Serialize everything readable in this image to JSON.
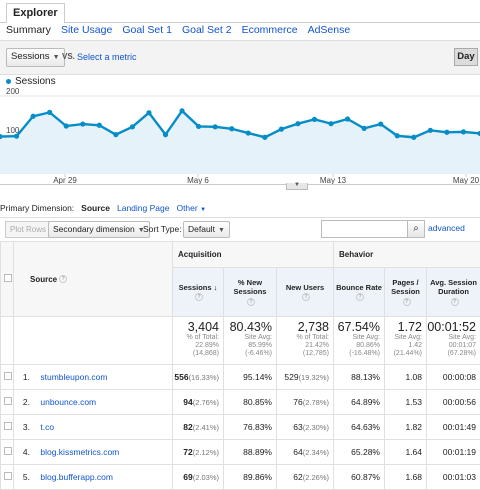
{
  "tabs": {
    "explorer": "Explorer"
  },
  "subnav": [
    "Summary",
    "Site Usage",
    "Goal Set 1",
    "Goal Set 2",
    "Ecommerce",
    "AdSense"
  ],
  "controls": {
    "metric": "Sessions",
    "vs": "VS.",
    "select_metric": "Select a metric",
    "day": "Day"
  },
  "legend": "Sessions",
  "colors": {
    "series": "#058dc7",
    "link": "#1155cc"
  },
  "chart_data": {
    "type": "area",
    "y_ticks": [
      "200",
      "100"
    ],
    "ylim": [
      0,
      200
    ],
    "x_labels": [
      "Apr 29",
      "May 6",
      "May 13",
      "May 20"
    ],
    "grid": true,
    "series": [
      {
        "name": "Sessions",
        "values": [
          96,
          97,
          148,
          158,
          123,
          128,
          125,
          101,
          121,
          157,
          101,
          162,
          122,
          121,
          116,
          105,
          94,
          115,
          129,
          140,
          129,
          141,
          117,
          128,
          98,
          94,
          112,
          107,
          108,
          104
        ]
      }
    ]
  },
  "primary_dimension": {
    "label": "Primary Dimension:",
    "options": [
      "Source",
      "Landing Page",
      "Other"
    ]
  },
  "toolbar": {
    "plot_rows": "Plot Rows",
    "secondary": "Secondary dimension",
    "sort_type": "Sort Type:",
    "default": "Default",
    "advanced": "advanced"
  },
  "table": {
    "group_acq": "Acquisition",
    "group_beh": "Behavior",
    "col_source": "Source",
    "cols": [
      "Sessions",
      "% New Sessions",
      "New Users",
      "Bounce Rate",
      "Pages / Session",
      "Avg. Session Duration"
    ],
    "totals": [
      {
        "big": "3,404",
        "l1": "% of Total:",
        "l2": "22.89%",
        "l3": "(14,868)"
      },
      {
        "big": "80.43%",
        "l1": "Site Avg:",
        "l2": "85.99%",
        "l3": "(-6.46%)"
      },
      {
        "big": "2,738",
        "l1": "% of Total:",
        "l2": "21.42%",
        "l3": "(12,785)"
      },
      {
        "big": "67.54%",
        "l1": "Site Avg:",
        "l2": "80.86%",
        "l3": "(-16.48%)"
      },
      {
        "big": "1.72",
        "l1": "Site Avg:",
        "l2": "1.42",
        "l3": "(21.44%)"
      },
      {
        "big": "00:01:52",
        "l1": "Site Avg:",
        "l2": "00:01:07",
        "l3": "(67.28%)"
      }
    ],
    "rows": [
      {
        "n": "1.",
        "src": "stumbleupon.com",
        "s": "556",
        "sp": "(16.33%)",
        "ns": "95.14%",
        "nu": "529",
        "nup": "(19.32%)",
        "br": "88.13%",
        "pps": "1.08",
        "dur": "00:00:08"
      },
      {
        "n": "2.",
        "src": "unbounce.com",
        "s": "94",
        "sp": "(2.76%)",
        "ns": "80.85%",
        "nu": "76",
        "nup": "(2.78%)",
        "br": "64.89%",
        "pps": "1.53",
        "dur": "00:00:56"
      },
      {
        "n": "3.",
        "src": "t.co",
        "s": "82",
        "sp": "(2.41%)",
        "ns": "76.83%",
        "nu": "63",
        "nup": "(2.30%)",
        "br": "64.63%",
        "pps": "1.82",
        "dur": "00:01:49"
      },
      {
        "n": "4.",
        "src": "blog.kissmetrics.com",
        "s": "72",
        "sp": "(2.12%)",
        "ns": "88.89%",
        "nu": "64",
        "nup": "(2.34%)",
        "br": "65.28%",
        "pps": "1.64",
        "dur": "00:01:19"
      },
      {
        "n": "5.",
        "src": "blog.bufferapp.com",
        "s": "69",
        "sp": "(2.03%)",
        "ns": "89.86%",
        "nu": "62",
        "nup": "(2.26%)",
        "br": "60.87%",
        "pps": "1.68",
        "dur": "00:01:03"
      }
    ]
  }
}
